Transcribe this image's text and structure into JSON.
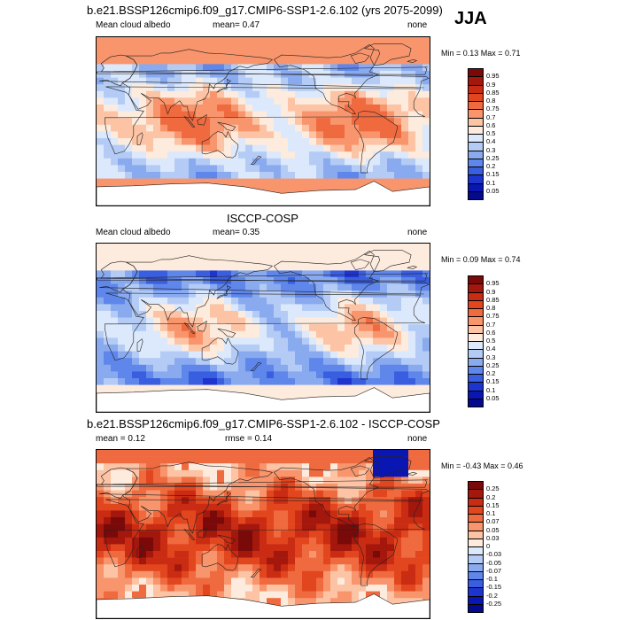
{
  "season": "JJA",
  "colors": {
    "land_line": "#222222",
    "antarctica_fill": "#ffffff",
    "frame": "#000000"
  },
  "chart_data": [
    {
      "type": "heatmap",
      "title": "b.e21.BSSP126cmip6.f09_g17.CMIP6-SSP1-2.6.102 (yrs 2075-2099)",
      "variable": "Mean cloud albedo",
      "stats_left": "mean=   0.47",
      "units": "none",
      "minmax": "Min =   0.13 Max =   0.71",
      "colorbar_levels": [
        "0.95",
        "0.9",
        "0.85",
        "0.8",
        "0.75",
        "0.7",
        "0.6",
        "0.5",
        "0.4",
        "0.3",
        "0.25",
        "0.2",
        "0.15",
        "0.1",
        "0.05"
      ],
      "colorbar_colors": [
        "#7a0a0a",
        "#a4170d",
        "#c92c13",
        "#e2461f",
        "#f06a3f",
        "#f8956c",
        "#fcc3a4",
        "#fdebdd",
        "#dce8fb",
        "#b4ccf5",
        "#8aaaf0",
        "#5f86ea",
        "#3a5ee0",
        "#1e34cf",
        "#0a16b3",
        "#050a8c"
      ],
      "field_mean": 0.47,
      "field_min": 0.13,
      "field_max": 0.71
    },
    {
      "type": "heatmap",
      "title": "ISCCP-COSP",
      "variable": "Mean cloud albedo",
      "stats_left": "mean=   0.35",
      "units": "none",
      "minmax": "Min =   0.09 Max =   0.74",
      "colorbar_levels": [
        "0.95",
        "0.9",
        "0.85",
        "0.8",
        "0.75",
        "0.7",
        "0.6",
        "0.5",
        "0.4",
        "0.3",
        "0.25",
        "0.2",
        "0.15",
        "0.1",
        "0.05"
      ],
      "colorbar_colors": [
        "#7a0a0a",
        "#a4170d",
        "#c92c13",
        "#e2461f",
        "#f06a3f",
        "#f8956c",
        "#fcc3a4",
        "#fdebdd",
        "#dce8fb",
        "#b4ccf5",
        "#8aaaf0",
        "#5f86ea",
        "#3a5ee0",
        "#1e34cf",
        "#0a16b3",
        "#050a8c"
      ],
      "field_mean": 0.35,
      "field_min": 0.09,
      "field_max": 0.74
    },
    {
      "type": "heatmap",
      "title": "b.e21.BSSP126cmip6.f09_g17.CMIP6-SSP1-2.6.102 - ISCCP-COSP",
      "stats_left": "mean =   0.12",
      "stats_mid": "rmse =   0.14",
      "units": "none",
      "minmax": "Min =  -0.43 Max =   0.46",
      "colorbar_levels": [
        "0.25",
        "0.2",
        "0.15",
        "0.1",
        "0.07",
        "0.05",
        "0.03",
        "0",
        "-0.03",
        "-0.05",
        "-0.07",
        "-0.1",
        "-0.15",
        "-0.2",
        "-0.25"
      ],
      "colorbar_colors": [
        "#7a0a0a",
        "#a4170d",
        "#c92c13",
        "#e2461f",
        "#f06a3f",
        "#f8956c",
        "#fcc3a4",
        "#fdebdd",
        "#dce8fb",
        "#b4ccf5",
        "#8aaaf0",
        "#5f86ea",
        "#3a5ee0",
        "#1e34cf",
        "#0a16b3",
        "#050a8c"
      ],
      "field_mean": 0.12,
      "field_min": -0.43,
      "field_max": 0.46
    }
  ]
}
